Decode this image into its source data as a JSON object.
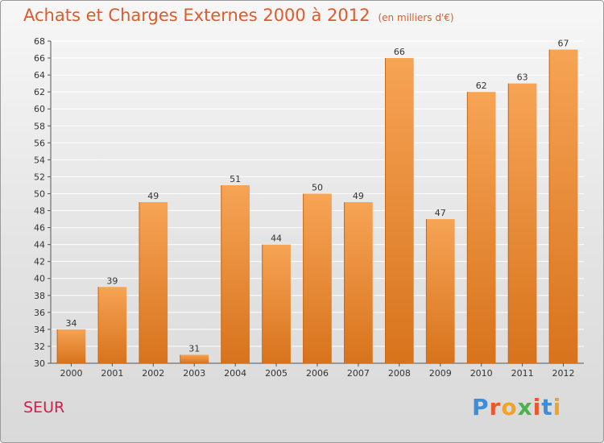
{
  "header": {
    "title": "Achats et Charges Externes 2000 à 2012",
    "unit": "(en milliers d'€)"
  },
  "footer": {
    "commune": "SEUR",
    "brand_letters": [
      "P",
      "r",
      "o",
      "x",
      "i",
      "t",
      "i"
    ],
    "brand_colors": [
      "#3a8fd8",
      "#e8592b",
      "#f2a12a",
      "#4bb34b",
      "#e8592b",
      "#3a8fd8",
      "#f2a12a"
    ]
  },
  "colors": {
    "bar_light": "#f6a455",
    "bar_dark": "#d8731c",
    "grid": "#ffffff",
    "axis": "#555555"
  },
  "chart_data": {
    "type": "bar",
    "categories": [
      "2000",
      "2001",
      "2002",
      "2003",
      "2004",
      "2005",
      "2006",
      "2007",
      "2008",
      "2009",
      "2010",
      "2011",
      "2012"
    ],
    "values": [
      34,
      39,
      49,
      31,
      51,
      44,
      50,
      49,
      66,
      47,
      62,
      63,
      67
    ],
    "ylim": [
      30,
      68
    ],
    "ytick_step": 2,
    "grid": true,
    "legend": "none"
  }
}
